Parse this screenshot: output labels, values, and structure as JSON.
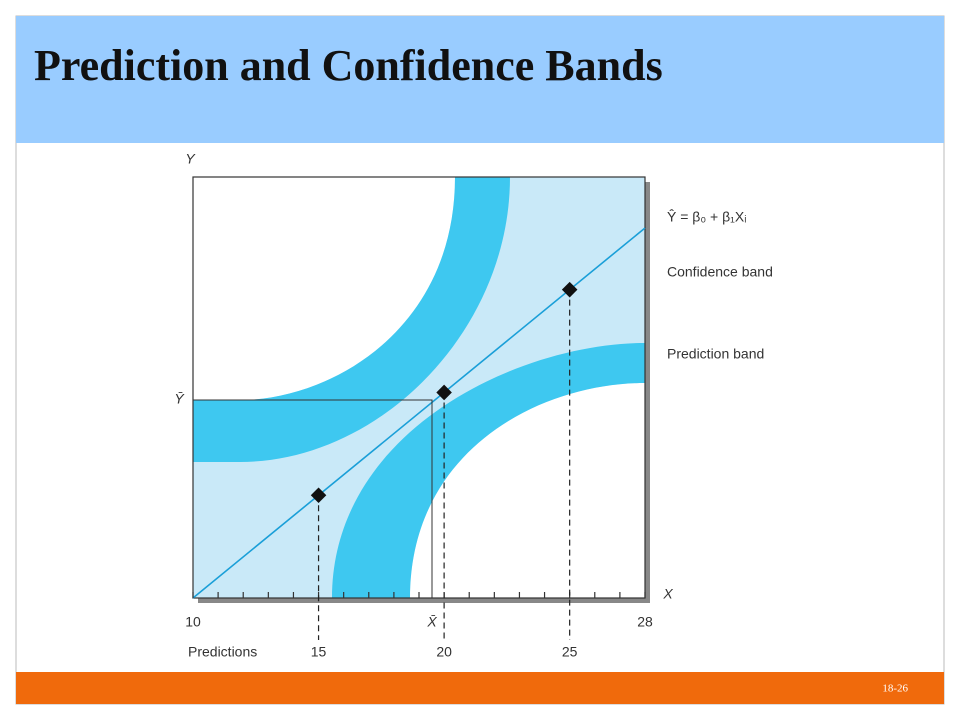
{
  "header": {
    "title": "Prediction and Confidence Bands"
  },
  "diagram": {
    "y_axis_label": "Y",
    "x_axis_label": "X",
    "y_mean_label": "Ȳ",
    "x_mean_label": "X̄",
    "x_range": [
      10,
      28
    ],
    "predictions_label": "Predictions",
    "predictions": [
      15,
      20,
      25
    ],
    "legend": {
      "regression_line": "Ŷ = β₀ + β₁Xᵢ",
      "confidence_band": "Confidence band",
      "prediction_band": "Prediction band"
    }
  },
  "footer": {
    "page": "18-26"
  }
}
